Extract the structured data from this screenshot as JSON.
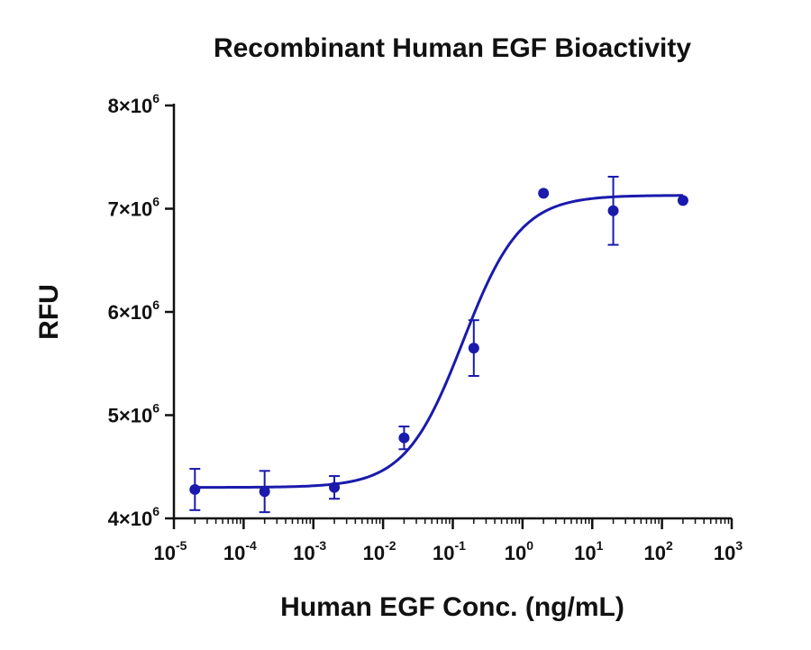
{
  "chart_data": {
    "type": "scatter",
    "title": "Recombinant Human EGF Bioactivity",
    "xlabel": "Human EGF Conc. (ng/mL)",
    "ylabel": "RFU",
    "x_scale": "log",
    "xlim": [
      1e-05,
      1000
    ],
    "ylim": [
      4000000,
      8000000
    ],
    "x_ticks": [
      {
        "base": "10",
        "exp": "-5",
        "value": 1e-05
      },
      {
        "base": "10",
        "exp": "-4",
        "value": 0.0001
      },
      {
        "base": "10",
        "exp": "-3",
        "value": 0.001
      },
      {
        "base": "10",
        "exp": "-2",
        "value": 0.01
      },
      {
        "base": "10",
        "exp": "-1",
        "value": 0.1
      },
      {
        "base": "10",
        "exp": "0",
        "value": 1
      },
      {
        "base": "10",
        "exp": "1",
        "value": 10
      },
      {
        "base": "10",
        "exp": "2",
        "value": 100
      },
      {
        "base": "10",
        "exp": "3",
        "value": 1000
      }
    ],
    "y_ticks": [
      {
        "mantissa": "4",
        "base": "10",
        "exp": "6",
        "value": 4000000
      },
      {
        "mantissa": "5",
        "base": "10",
        "exp": "6",
        "value": 5000000
      },
      {
        "mantissa": "6",
        "base": "10",
        "exp": "6",
        "value": 6000000
      },
      {
        "mantissa": "7",
        "base": "10",
        "exp": "6",
        "value": 7000000
      },
      {
        "mantissa": "8",
        "base": "10",
        "exp": "6",
        "value": 8000000
      }
    ],
    "series": [
      {
        "points": [
          {
            "x": 2e-05,
            "y": 4280000,
            "err": 200000
          },
          {
            "x": 0.0002,
            "y": 4260000,
            "err": 200000
          },
          {
            "x": 0.002,
            "y": 4300000,
            "err": 110000
          },
          {
            "x": 0.02,
            "y": 4780000,
            "err": 110000
          },
          {
            "x": 0.2,
            "y": 5650000,
            "err": 270000
          },
          {
            "x": 2,
            "y": 7150000,
            "err": 0
          },
          {
            "x": 20,
            "y": 6980000,
            "err": 330000
          },
          {
            "x": 200,
            "y": 7080000,
            "err": 0
          }
        ],
        "fit": {
          "model": "four-parameter logistic",
          "bottom": 4300000,
          "top": 7130000,
          "ec50": 0.14,
          "hill": 1.05
        }
      }
    ],
    "color": "#1a1aad",
    "grid": false,
    "legend": "none"
  }
}
